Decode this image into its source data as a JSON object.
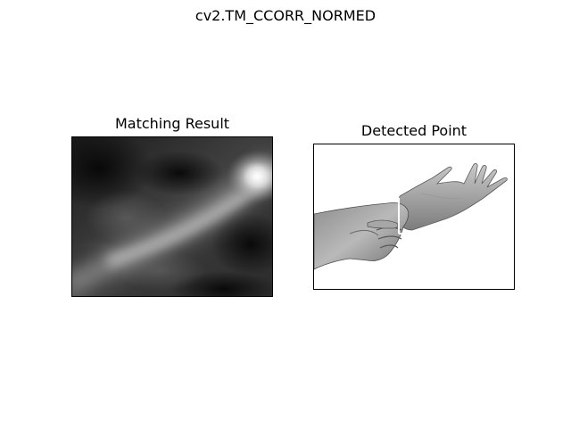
{
  "figure": {
    "suptitle": "cv2.TM_CCORR_NORMED"
  },
  "panels": [
    {
      "title": "Matching Result",
      "content": "grayscale correlation heatmap, bright diagonal band rising to the upper right, brightest spot near the top-right corner"
    },
    {
      "title": "Detected Point",
      "content": "grayscale photo of two hands, one hand gripping the other wrist; a thin white vertical marker line at the wrist"
    }
  ],
  "colors": {
    "background": "#ffffff",
    "axes_border": "#000000",
    "heatmap_dark": "#0e0e0e",
    "heatmap_bright": "#ffffff",
    "marker": "#ffffff"
  }
}
